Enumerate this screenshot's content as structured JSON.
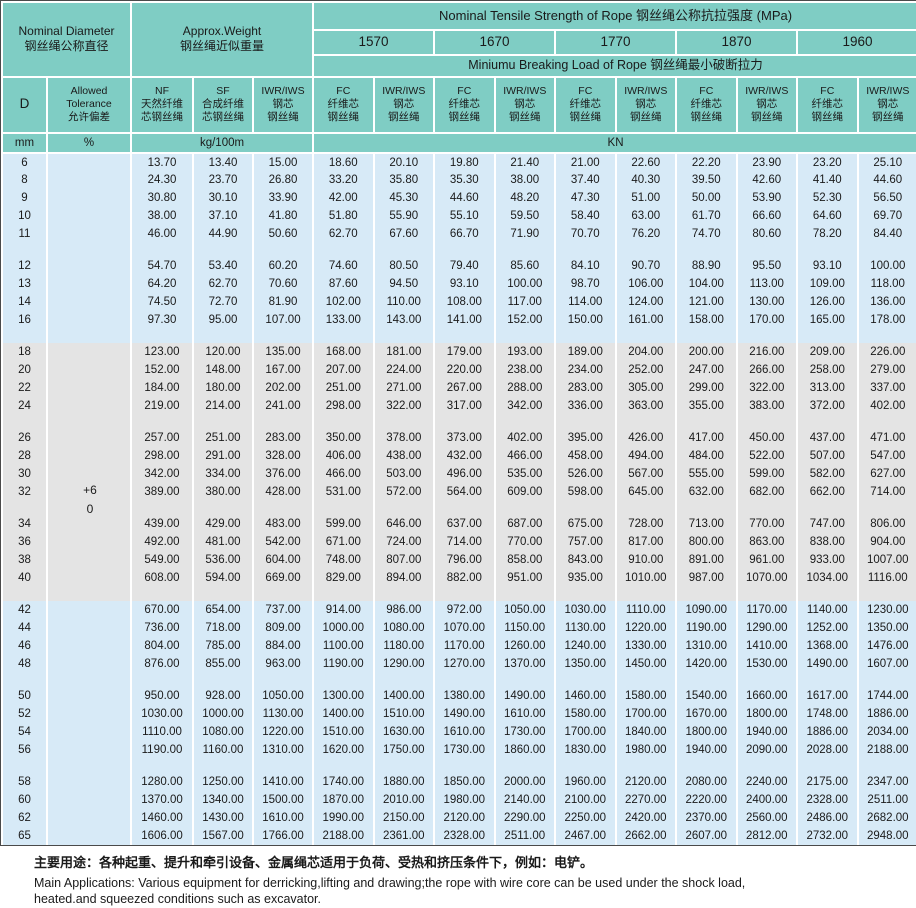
{
  "header": {
    "nominal_diameter": "Nominal Diameter\n钢丝绳公称直径",
    "approx_weight": "Approx.Weight\n钢丝绳近似重量",
    "tensile_title": "Nominal Tensile Strength of Rope 钢丝绳公称抗拉强度 (MPa)",
    "strengths": [
      "1570",
      "1670",
      "1770",
      "1870",
      "1960"
    ],
    "breaking_title": "Miniumu Breaking Load of Rope  钢丝绳最小破断拉力",
    "col_d": "D",
    "col_tolerance": "Allowed\nTolerance\n允许偏差",
    "col_nf": "NF\n天然纤维\n芯钢丝绳",
    "col_sf": "SF\n合成纤维\n芯钢丝绳",
    "col_iwr": "IWR/IWS\n钢芯\n钢丝绳",
    "col_fc": "FC\n纤维芯\n钢丝绳",
    "unit_mm": "mm",
    "unit_pct": "%",
    "unit_kg": "kg/100m",
    "unit_kn": "KN"
  },
  "tolerance_value": "+6\n0",
  "colors": {
    "header_teal": "#7fcdc4",
    "row_blue": "#d7eaf7",
    "row_gray": "#e4e4e4"
  },
  "groups": [
    {
      "tone": "blue",
      "rows": [
        [
          "6",
          "13.70",
          "13.40",
          "15.00",
          "18.60",
          "20.10",
          "19.80",
          "21.40",
          "21.00",
          "22.60",
          "22.20",
          "23.90",
          "23.20",
          "25.10"
        ],
        [
          "8",
          "24.30",
          "23.70",
          "26.80",
          "33.20",
          "35.80",
          "35.30",
          "38.00",
          "37.40",
          "40.30",
          "39.50",
          "42.60",
          "41.40",
          "44.60"
        ],
        [
          "9",
          "30.80",
          "30.10",
          "33.90",
          "42.00",
          "45.30",
          "44.60",
          "48.20",
          "47.30",
          "51.00",
          "50.00",
          "53.90",
          "52.30",
          "56.50"
        ],
        [
          "10",
          "38.00",
          "37.10",
          "41.80",
          "51.80",
          "55.90",
          "55.10",
          "59.50",
          "58.40",
          "63.00",
          "61.70",
          "66.60",
          "64.60",
          "69.70"
        ],
        [
          "11",
          "46.00",
          "44.90",
          "50.60",
          "62.70",
          "67.60",
          "66.70",
          "71.90",
          "70.70",
          "76.20",
          "74.70",
          "80.60",
          "78.20",
          "84.40"
        ]
      ]
    },
    {
      "tone": "blue",
      "rows": [
        [
          "12",
          "54.70",
          "53.40",
          "60.20",
          "74.60",
          "80.50",
          "79.40",
          "85.60",
          "84.10",
          "90.70",
          "88.90",
          "95.50",
          "93.10",
          "100.00"
        ],
        [
          "13",
          "64.20",
          "62.70",
          "70.60",
          "87.60",
          "94.50",
          "93.10",
          "100.00",
          "98.70",
          "106.00",
          "104.00",
          "113.00",
          "109.00",
          "118.00"
        ],
        [
          "14",
          "74.50",
          "72.70",
          "81.90",
          "102.00",
          "110.00",
          "108.00",
          "117.00",
          "114.00",
          "124.00",
          "121.00",
          "130.00",
          "126.00",
          "136.00"
        ],
        [
          "16",
          "97.30",
          "95.00",
          "107.00",
          "133.00",
          "143.00",
          "141.00",
          "152.00",
          "150.00",
          "161.00",
          "158.00",
          "170.00",
          "165.00",
          "178.00"
        ]
      ]
    },
    {
      "tone": "gray",
      "rows": [
        [
          "18",
          "123.00",
          "120.00",
          "135.00",
          "168.00",
          "181.00",
          "179.00",
          "193.00",
          "189.00",
          "204.00",
          "200.00",
          "216.00",
          "209.00",
          "226.00"
        ],
        [
          "20",
          "152.00",
          "148.00",
          "167.00",
          "207.00",
          "224.00",
          "220.00",
          "238.00",
          "234.00",
          "252.00",
          "247.00",
          "266.00",
          "258.00",
          "279.00"
        ],
        [
          "22",
          "184.00",
          "180.00",
          "202.00",
          "251.00",
          "271.00",
          "267.00",
          "288.00",
          "283.00",
          "305.00",
          "299.00",
          "322.00",
          "313.00",
          "337.00"
        ],
        [
          "24",
          "219.00",
          "214.00",
          "241.00",
          "298.00",
          "322.00",
          "317.00",
          "342.00",
          "336.00",
          "363.00",
          "355.00",
          "383.00",
          "372.00",
          "402.00"
        ]
      ]
    },
    {
      "tone": "gray",
      "rows": [
        [
          "26",
          "257.00",
          "251.00",
          "283.00",
          "350.00",
          "378.00",
          "373.00",
          "402.00",
          "395.00",
          "426.00",
          "417.00",
          "450.00",
          "437.00",
          "471.00"
        ],
        [
          "28",
          "298.00",
          "291.00",
          "328.00",
          "406.00",
          "438.00",
          "432.00",
          "466.00",
          "458.00",
          "494.00",
          "484.00",
          "522.00",
          "507.00",
          "547.00"
        ],
        [
          "30",
          "342.00",
          "334.00",
          "376.00",
          "466.00",
          "503.00",
          "496.00",
          "535.00",
          "526.00",
          "567.00",
          "555.00",
          "599.00",
          "582.00",
          "627.00"
        ],
        [
          "32",
          "389.00",
          "380.00",
          "428.00",
          "531.00",
          "572.00",
          "564.00",
          "609.00",
          "598.00",
          "645.00",
          "632.00",
          "682.00",
          "662.00",
          "714.00"
        ]
      ]
    },
    {
      "tone": "gray",
      "rows": [
        [
          "34",
          "439.00",
          "429.00",
          "483.00",
          "599.00",
          "646.00",
          "637.00",
          "687.00",
          "675.00",
          "728.00",
          "713.00",
          "770.00",
          "747.00",
          "806.00"
        ],
        [
          "36",
          "492.00",
          "481.00",
          "542.00",
          "671.00",
          "724.00",
          "714.00",
          "770.00",
          "757.00",
          "817.00",
          "800.00",
          "863.00",
          "838.00",
          "904.00"
        ],
        [
          "38",
          "549.00",
          "536.00",
          "604.00",
          "748.00",
          "807.00",
          "796.00",
          "858.00",
          "843.00",
          "910.00",
          "891.00",
          "961.00",
          "933.00",
          "1007.00"
        ],
        [
          "40",
          "608.00",
          "594.00",
          "669.00",
          "829.00",
          "894.00",
          "882.00",
          "951.00",
          "935.00",
          "1010.00",
          "987.00",
          "1070.00",
          "1034.00",
          "1116.00"
        ]
      ]
    },
    {
      "tone": "blue",
      "rows": [
        [
          "42",
          "670.00",
          "654.00",
          "737.00",
          "914.00",
          "986.00",
          "972.00",
          "1050.00",
          "1030.00",
          "1110.00",
          "1090.00",
          "1170.00",
          "1140.00",
          "1230.00"
        ],
        [
          "44",
          "736.00",
          "718.00",
          "809.00",
          "1000.00",
          "1080.00",
          "1070.00",
          "1150.00",
          "1130.00",
          "1220.00",
          "1190.00",
          "1290.00",
          "1252.00",
          "1350.00"
        ],
        [
          "46",
          "804.00",
          "785.00",
          "884.00",
          "1100.00",
          "1180.00",
          "1170.00",
          "1260.00",
          "1240.00",
          "1330.00",
          "1310.00",
          "1410.00",
          "1368.00",
          "1476.00"
        ],
        [
          "48",
          "876.00",
          "855.00",
          "963.00",
          "1190.00",
          "1290.00",
          "1270.00",
          "1370.00",
          "1350.00",
          "1450.00",
          "1420.00",
          "1530.00",
          "1490.00",
          "1607.00"
        ]
      ]
    },
    {
      "tone": "blue",
      "rows": [
        [
          "50",
          "950.00",
          "928.00",
          "1050.00",
          "1300.00",
          "1400.00",
          "1380.00",
          "1490.00",
          "1460.00",
          "1580.00",
          "1540.00",
          "1660.00",
          "1617.00",
          "1744.00"
        ],
        [
          "52",
          "1030.00",
          "1000.00",
          "1130.00",
          "1400.00",
          "1510.00",
          "1490.00",
          "1610.00",
          "1580.00",
          "1700.00",
          "1670.00",
          "1800.00",
          "1748.00",
          "1886.00"
        ],
        [
          "54",
          "1110.00",
          "1080.00",
          "1220.00",
          "1510.00",
          "1630.00",
          "1610.00",
          "1730.00",
          "1700.00",
          "1840.00",
          "1800.00",
          "1940.00",
          "1886.00",
          "2034.00"
        ],
        [
          "56",
          "1190.00",
          "1160.00",
          "1310.00",
          "1620.00",
          "1750.00",
          "1730.00",
          "1860.00",
          "1830.00",
          "1980.00",
          "1940.00",
          "2090.00",
          "2028.00",
          "2188.00"
        ]
      ]
    },
    {
      "tone": "blue",
      "rows": [
        [
          "58",
          "1280.00",
          "1250.00",
          "1410.00",
          "1740.00",
          "1880.00",
          "1850.00",
          "2000.00",
          "1960.00",
          "2120.00",
          "2080.00",
          "2240.00",
          "2175.00",
          "2347.00"
        ],
        [
          "60",
          "1370.00",
          "1340.00",
          "1500.00",
          "1870.00",
          "2010.00",
          "1980.00",
          "2140.00",
          "2100.00",
          "2270.00",
          "2220.00",
          "2400.00",
          "2328.00",
          "2511.00"
        ],
        [
          "62",
          "1460.00",
          "1430.00",
          "1610.00",
          "1990.00",
          "2150.00",
          "2120.00",
          "2290.00",
          "2250.00",
          "2420.00",
          "2370.00",
          "2560.00",
          "2486.00",
          "2682.00"
        ],
        [
          "65",
          "1606.00",
          "1567.00",
          "1766.00",
          "2188.00",
          "2361.00",
          "2328.00",
          "2511.00",
          "2467.00",
          "2662.00",
          "2607.00",
          "2812.00",
          "2732.00",
          "2948.00"
        ]
      ]
    }
  ],
  "footer": {
    "cn": "主要用途：各种起重、提升和牵引设备、金属绳芯适用于负荷、受热和挤压条件下，例如：电铲。",
    "en": "Main Applications: Various equipment for derricking,lifting and drawing;the rope with wire core can be used under the shock load,\nheated.and squeezed conditions such as excavator."
  }
}
